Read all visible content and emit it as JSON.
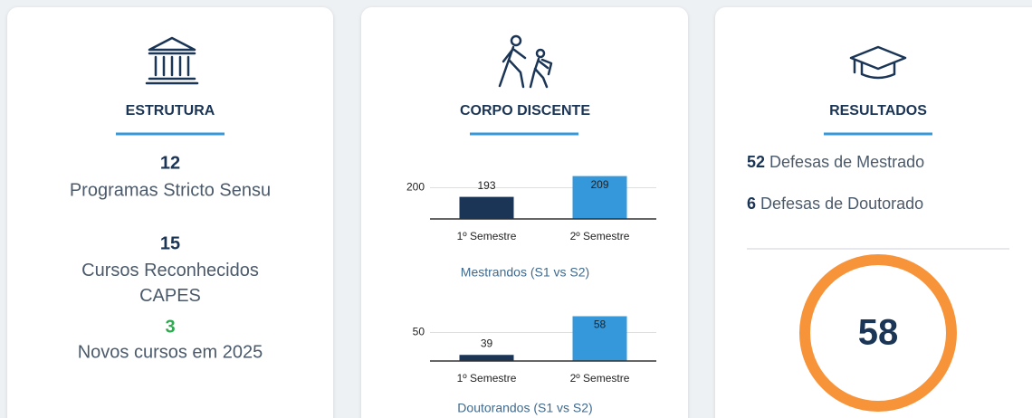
{
  "cards": [
    {
      "title": "ESTRUTURA",
      "items": [
        {
          "value": 12,
          "label": "Programas Stricto Sensu"
        },
        {
          "value": 15,
          "label": "Cursos Reconhecidos CAPES"
        },
        {
          "value": 3,
          "label": "Novos cursos em 2025"
        }
      ]
    },
    {
      "title": "CORPO DISCENTE"
    },
    {
      "title": "RESULTADOS",
      "items": [
        {
          "value": 52,
          "label": "Defesas de Mestrado"
        },
        {
          "value": 6,
          "label": "Defesas de Doutorado"
        }
      ],
      "highlight": 58
    }
  ],
  "chart_data": [
    {
      "type": "bar",
      "title": "Mestrandos (S1 vs S2)",
      "categories": [
        "1º Semestre",
        "2º Semestre"
      ],
      "values": [
        193,
        209
      ],
      "colors": [
        "#1b3556",
        "#3498db"
      ],
      "ylim": [
        176,
        215
      ],
      "yticks": [
        200
      ],
      "grid": true
    },
    {
      "type": "bar",
      "title": "Doutorandos (S1 vs S2)",
      "categories": [
        "1º Semestre",
        "2º Semestre"
      ],
      "values": [
        39,
        58
      ],
      "colors": [
        "#1b3556",
        "#3498db"
      ],
      "ylim": [
        36,
        60
      ],
      "yticks": [
        50
      ],
      "grid": true
    }
  ]
}
